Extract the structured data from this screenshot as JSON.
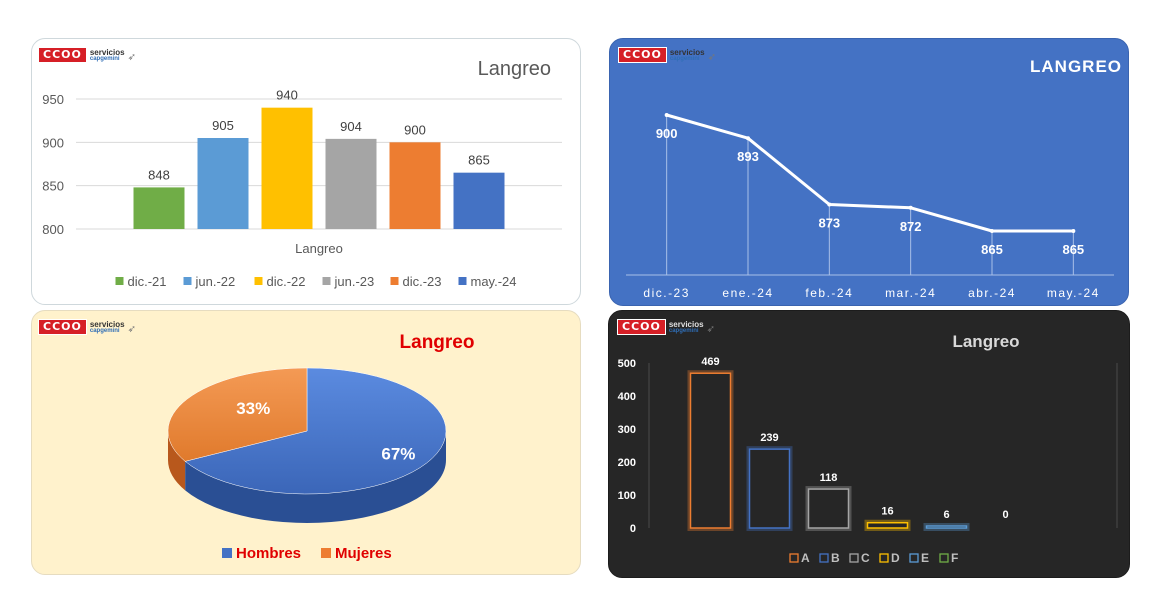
{
  "logo": {
    "mark": "CCOO",
    "line1": "servicios",
    "line2": "capgemini",
    "icon": "bird-icon"
  },
  "chart_data": [
    {
      "type": "bar",
      "title": "Langreo",
      "xlabel": "Langreo",
      "categories": [
        "Langreo"
      ],
      "series": [
        {
          "name": "dic.-21",
          "values": [
            848
          ],
          "color": "#70ad47"
        },
        {
          "name": "jun.-22",
          "values": [
            905
          ],
          "color": "#5b9bd5"
        },
        {
          "name": "dic.-22",
          "values": [
            940
          ],
          "color": "#ffc000"
        },
        {
          "name": "jun.-23",
          "values": [
            904
          ],
          "color": "#a5a5a5"
        },
        {
          "name": "dic.-23",
          "values": [
            900
          ],
          "color": "#ed7d31"
        },
        {
          "name": "may.-24",
          "values": [
            865
          ],
          "color": "#4472c4"
        }
      ],
      "yticks": [
        "800",
        "850",
        "900",
        "950"
      ],
      "ylim": [
        800,
        950
      ],
      "legend": "bottom",
      "grid": true
    },
    {
      "type": "line",
      "title": "LANGREO",
      "x": [
        "dic.-23",
        "ene.-24",
        "feb.-24",
        "mar.-24",
        "abr.-24",
        "may.-24"
      ],
      "series": [
        {
          "values": [
            900,
            893,
            873,
            872,
            865,
            865
          ]
        }
      ],
      "ylim": [
        800,
        910
      ],
      "grid": false,
      "background": "#4472c4"
    },
    {
      "type": "pie",
      "title": "Langreo",
      "slices": [
        {
          "label": "Hombres",
          "value": 67,
          "display": "67%",
          "color": "#4472c4"
        },
        {
          "label": "Mujeres",
          "value": 33,
          "display": "33%",
          "color": "#ed7d31"
        }
      ],
      "legend": "bottom",
      "background": "#fff2cc",
      "title_color": "#e00000"
    },
    {
      "type": "bar",
      "title": "Langreo",
      "categories": [
        "A",
        "B",
        "C",
        "D",
        "E",
        "F"
      ],
      "values": [
        469,
        239,
        118,
        16,
        6,
        0
      ],
      "colors": [
        "#ed7d31",
        "#4472c4",
        "#a5a5a5",
        "#ffc000",
        "#5b9bd5",
        "#70ad47"
      ],
      "yticks": [
        "0",
        "100",
        "200",
        "300",
        "400",
        "500"
      ],
      "ylim": [
        0,
        500
      ],
      "legend": "bottom",
      "background": "#262626"
    }
  ]
}
